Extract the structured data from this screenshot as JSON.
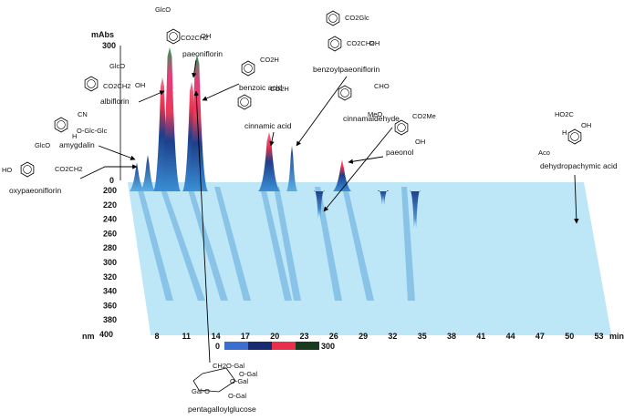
{
  "axes": {
    "absorbance_unit": "mAbs",
    "absorbance_ticks": [
      "300",
      "0"
    ],
    "wavelength_unit": "nm",
    "wavelength_ticks": [
      "200",
      "220",
      "240",
      "260",
      "280",
      "300",
      "320",
      "340",
      "360",
      "380",
      "400"
    ],
    "time_unit": "min",
    "time_ticks": [
      "8",
      "11",
      "14",
      "17",
      "20",
      "23",
      "26",
      "29",
      "32",
      "35",
      "38",
      "41",
      "44",
      "47",
      "50",
      "53"
    ]
  },
  "colorbar": {
    "min": "0",
    "max": "300"
  },
  "compounds": [
    {
      "name": "paeoniflorin",
      "fragments": [
        "GlcO",
        "CO2CH2",
        "OH"
      ]
    },
    {
      "name": "benzoic acid",
      "fragments": [
        "CO2H"
      ]
    },
    {
      "name": "albiflorin",
      "fragments": [
        "GlcO",
        "CO2CH2",
        "OH"
      ]
    },
    {
      "name": "amygdalin",
      "fragments": [
        "CN",
        "O-Glc-Glc",
        "H"
      ]
    },
    {
      "name": "oxypaeoniflorin",
      "fragments": [
        "GlcO",
        "HO",
        "CO2CH2"
      ]
    },
    {
      "name": "benzoylpaeoniflorin",
      "fragments": [
        "CO2Glc",
        "CO2CH2",
        "OH"
      ]
    },
    {
      "name": "cinnamic acid",
      "fragments": [
        "CO2H"
      ]
    },
    {
      "name": "cinnamaldehyde",
      "fragments": [
        "CHO"
      ]
    },
    {
      "name": "paeonol",
      "fragments": [
        "MeO",
        "CO2Me",
        "OH"
      ]
    },
    {
      "name": "dehydropachymic acid",
      "fragments": [
        "HO2C",
        "OH",
        "H",
        "Aco"
      ]
    },
    {
      "name": "pentagalloylglucose",
      "fragments": [
        "CH2O-Gal",
        "O-Gal",
        "O-Gal",
        "Gal-O",
        "O-Gal"
      ]
    }
  ]
}
